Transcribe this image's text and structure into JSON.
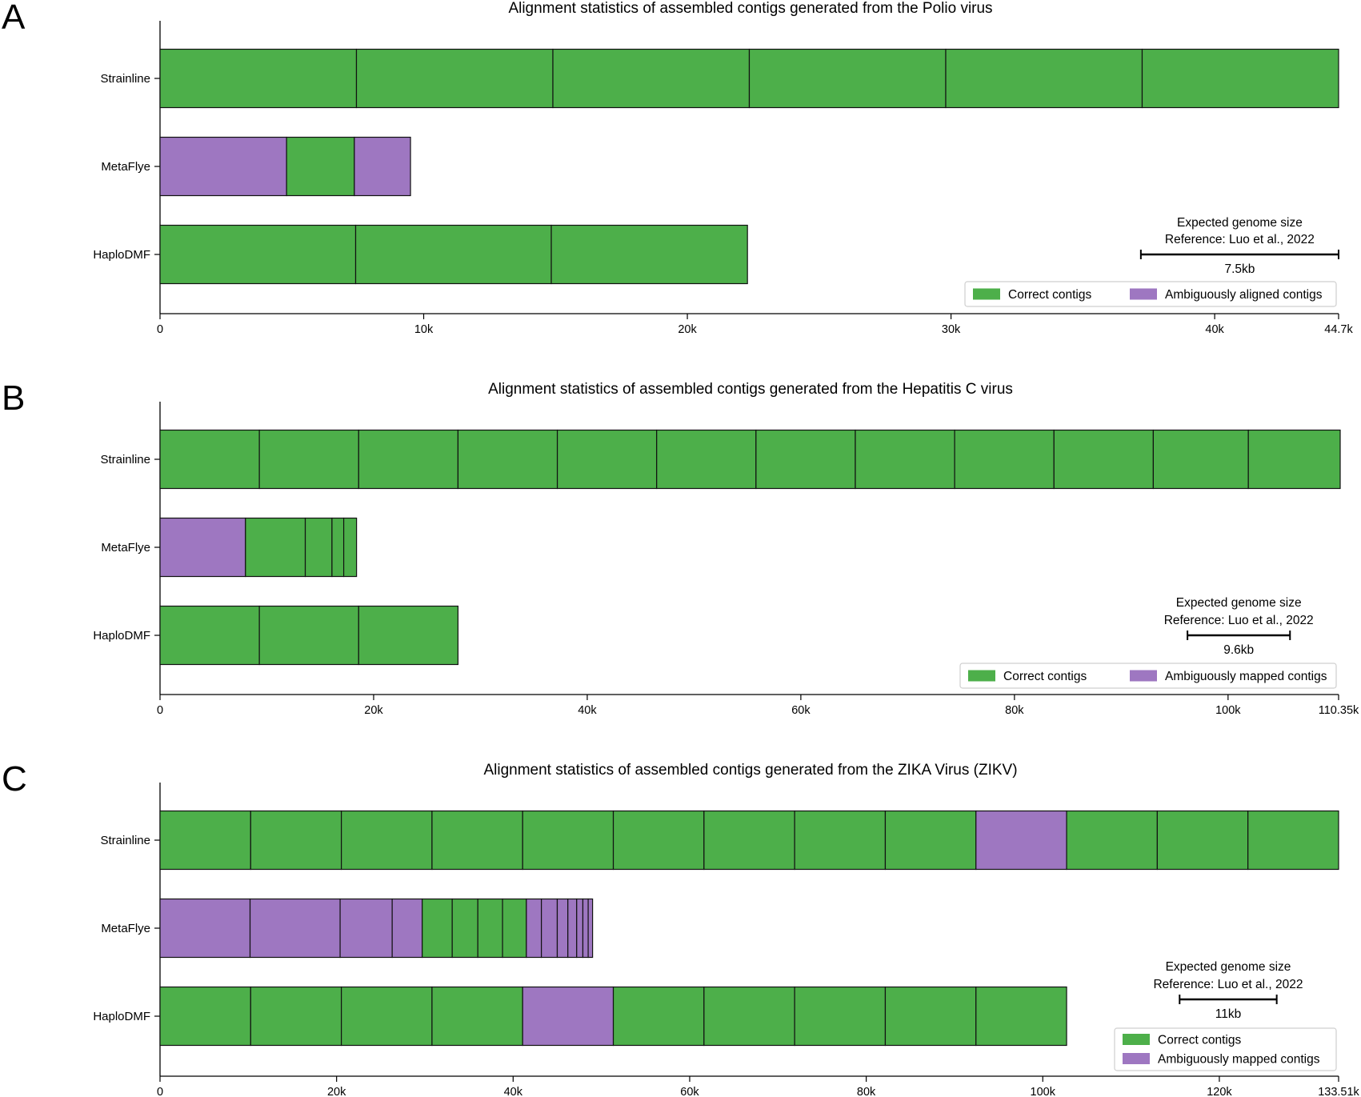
{
  "figure": {
    "panels": [
      {
        "letter": "A",
        "title": "Alignment statistics of assembled contigs generated from the Polio virus",
        "categories": [
          "Strainline",
          "MetaFlye",
          "HaploDMF"
        ],
        "xmax": 44.7,
        "ticks": [
          {
            "value": 0,
            "label": "0"
          },
          {
            "value": 10,
            "label": "10k"
          },
          {
            "value": 20,
            "label": "20k"
          },
          {
            "value": 30,
            "label": "30k"
          },
          {
            "value": 40,
            "label": "40k"
          },
          {
            "value": 44.7,
            "label": "44.7k"
          }
        ],
        "scale_bar": {
          "line1": "Expected genome size",
          "line2": "Reference: Luo et al., 2022",
          "label": "7.5kb",
          "length": 7.5
        },
        "legend": {
          "layout": "horizontal",
          "correct_label": "Correct contigs",
          "ambiguous_label": "Ambiguously aligned contigs"
        }
      },
      {
        "letter": "B",
        "title": "Alignment statistics of assembled contigs generated from the Hepatitis C virus",
        "categories": [
          "Strainline",
          "MetaFlye",
          "HaploDMF"
        ],
        "xmax": 110.35,
        "ticks": [
          {
            "value": 0,
            "label": "0"
          },
          {
            "value": 20,
            "label": "20k"
          },
          {
            "value": 40,
            "label": "40k"
          },
          {
            "value": 60,
            "label": "60k"
          },
          {
            "value": 80,
            "label": "80k"
          },
          {
            "value": 100,
            "label": "100k"
          },
          {
            "value": 110.35,
            "label": "110.35k"
          }
        ],
        "scale_bar": {
          "line1": "Expected genome size",
          "line2": "Reference: Luo et al., 2022",
          "label": "9.6kb",
          "length": 9.6
        },
        "legend": {
          "layout": "horizontal",
          "correct_label": "Correct contigs",
          "ambiguous_label": "Ambiguously mapped contigs"
        }
      },
      {
        "letter": "C",
        "title": "Alignment statistics of assembled contigs generated from the ZIKA Virus (ZIKV)",
        "categories": [
          "Strainline",
          "MetaFlye",
          "HaploDMF"
        ],
        "xmax": 133.51,
        "ticks": [
          {
            "value": 0,
            "label": "0"
          },
          {
            "value": 20,
            "label": "20k"
          },
          {
            "value": 40,
            "label": "40k"
          },
          {
            "value": 60,
            "label": "60k"
          },
          {
            "value": 80,
            "label": "80k"
          },
          {
            "value": 100,
            "label": "100k"
          },
          {
            "value": 120,
            "label": "120k"
          },
          {
            "value": 133.51,
            "label": "133.51k"
          }
        ],
        "scale_bar": {
          "line1": "Expected genome size",
          "line2": "Reference: Luo et al., 2022",
          "label": "11kb",
          "length": 11
        },
        "legend": {
          "layout": "vertical",
          "correct_label": "Correct contigs",
          "ambiguous_label": "Ambiguously mapped contigs"
        }
      }
    ]
  },
  "chart_data": [
    {
      "type": "bar",
      "orientation": "horizontal-stacked",
      "title": "Alignment statistics of assembled contigs generated from the Polio virus",
      "xlabel": "",
      "ylabel": "",
      "unit": "kb",
      "xlim": [
        0,
        44.7
      ],
      "grid": false,
      "legend_position": "bottom-right",
      "colors": {
        "correct": "#4daf4a",
        "ambiguous": "#9e77c1"
      },
      "series": [
        {
          "name": "Strainline",
          "contigs": [
            {
              "length": 7.45,
              "class": "correct"
            },
            {
              "length": 7.45,
              "class": "correct"
            },
            {
              "length": 7.45,
              "class": "correct"
            },
            {
              "length": 7.45,
              "class": "correct"
            },
            {
              "length": 7.45,
              "class": "correct"
            },
            {
              "length": 7.45,
              "class": "correct"
            }
          ]
        },
        {
          "name": "MetaFlye",
          "contigs": [
            {
              "length": 4.8,
              "class": "ambiguous"
            },
            {
              "length": 2.57,
              "class": "correct"
            },
            {
              "length": 2.13,
              "class": "ambiguous"
            }
          ]
        },
        {
          "name": "HaploDMF",
          "contigs": [
            {
              "length": 7.42,
              "class": "correct"
            },
            {
              "length": 7.42,
              "class": "correct"
            },
            {
              "length": 7.44,
              "class": "correct"
            }
          ]
        }
      ]
    },
    {
      "type": "bar",
      "orientation": "horizontal-stacked",
      "title": "Alignment statistics of assembled contigs generated from the Hepatitis C virus",
      "xlabel": "",
      "ylabel": "",
      "unit": "kb",
      "xlim": [
        0,
        110.35
      ],
      "grid": false,
      "legend_position": "bottom-right",
      "colors": {
        "correct": "#4daf4a",
        "ambiguous": "#9e77c1"
      },
      "series": [
        {
          "name": "Strainline",
          "contigs": [
            {
              "length": 9.3,
              "class": "correct"
            },
            {
              "length": 9.3,
              "class": "correct"
            },
            {
              "length": 9.3,
              "class": "correct"
            },
            {
              "length": 9.3,
              "class": "correct"
            },
            {
              "length": 9.3,
              "class": "correct"
            },
            {
              "length": 9.3,
              "class": "correct"
            },
            {
              "length": 9.3,
              "class": "correct"
            },
            {
              "length": 9.3,
              "class": "correct"
            },
            {
              "length": 9.3,
              "class": "correct"
            },
            {
              "length": 9.3,
              "class": "correct"
            },
            {
              "length": 8.9,
              "class": "correct"
            },
            {
              "length": 8.6,
              "class": "correct"
            }
          ]
        },
        {
          "name": "MetaFlye",
          "contigs": [
            {
              "length": 8.0,
              "class": "ambiguous"
            },
            {
              "length": 5.6,
              "class": "correct"
            },
            {
              "length": 2.5,
              "class": "correct"
            },
            {
              "length": 1.1,
              "class": "correct"
            },
            {
              "length": 1.2,
              "class": "correct"
            }
          ]
        },
        {
          "name": "HaploDMF",
          "contigs": [
            {
              "length": 9.3,
              "class": "correct"
            },
            {
              "length": 9.3,
              "class": "correct"
            },
            {
              "length": 9.3,
              "class": "correct"
            }
          ]
        }
      ]
    },
    {
      "type": "bar",
      "orientation": "horizontal-stacked",
      "title": "Alignment statistics of assembled contigs generated from the ZIKA Virus (ZIKV)",
      "xlabel": "",
      "ylabel": "",
      "unit": "kb",
      "xlim": [
        0,
        133.51
      ],
      "grid": false,
      "legend_position": "bottom-right",
      "colors": {
        "correct": "#4daf4a",
        "ambiguous": "#9e77c1"
      },
      "series": [
        {
          "name": "Strainline",
          "contigs": [
            {
              "length": 10.27,
              "class": "correct"
            },
            {
              "length": 10.27,
              "class": "correct"
            },
            {
              "length": 10.27,
              "class": "correct"
            },
            {
              "length": 10.27,
              "class": "correct"
            },
            {
              "length": 10.27,
              "class": "correct"
            },
            {
              "length": 10.27,
              "class": "correct"
            },
            {
              "length": 10.27,
              "class": "correct"
            },
            {
              "length": 10.27,
              "class": "correct"
            },
            {
              "length": 10.27,
              "class": "correct"
            },
            {
              "length": 10.27,
              "class": "ambiguous"
            },
            {
              "length": 10.27,
              "class": "correct"
            },
            {
              "length": 10.27,
              "class": "correct"
            },
            {
              "length": 10.27,
              "class": "correct"
            }
          ]
        },
        {
          "name": "MetaFlye",
          "contigs": [
            {
              "length": 10.2,
              "class": "ambiguous"
            },
            {
              "length": 10.2,
              "class": "ambiguous"
            },
            {
              "length": 5.9,
              "class": "ambiguous"
            },
            {
              "length": 3.4,
              "class": "ambiguous"
            },
            {
              "length": 3.4,
              "class": "correct"
            },
            {
              "length": 2.9,
              "class": "correct"
            },
            {
              "length": 2.8,
              "class": "correct"
            },
            {
              "length": 2.7,
              "class": "correct"
            },
            {
              "length": 1.7,
              "class": "ambiguous"
            },
            {
              "length": 1.8,
              "class": "ambiguous"
            },
            {
              "length": 1.2,
              "class": "ambiguous"
            },
            {
              "length": 1.0,
              "class": "ambiguous"
            },
            {
              "length": 0.7,
              "class": "ambiguous"
            },
            {
              "length": 0.6,
              "class": "ambiguous"
            },
            {
              "length": 0.5,
              "class": "ambiguous"
            }
          ]
        },
        {
          "name": "HaploDMF",
          "contigs": [
            {
              "length": 10.27,
              "class": "correct"
            },
            {
              "length": 10.27,
              "class": "correct"
            },
            {
              "length": 10.27,
              "class": "correct"
            },
            {
              "length": 10.27,
              "class": "correct"
            },
            {
              "length": 10.27,
              "class": "ambiguous"
            },
            {
              "length": 10.27,
              "class": "correct"
            },
            {
              "length": 10.27,
              "class": "correct"
            },
            {
              "length": 10.27,
              "class": "correct"
            },
            {
              "length": 10.27,
              "class": "correct"
            },
            {
              "length": 10.27,
              "class": "correct"
            }
          ]
        }
      ]
    }
  ]
}
